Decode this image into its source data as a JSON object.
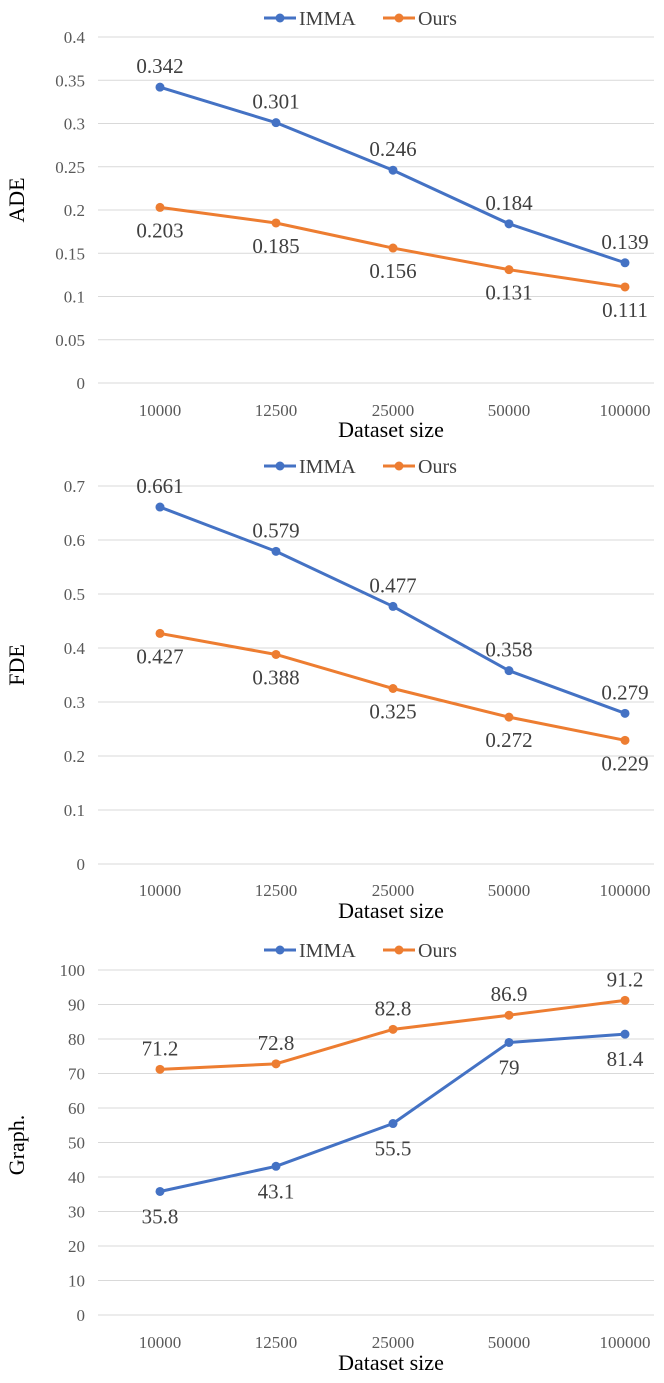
{
  "colors": {
    "imma": "#4472C4",
    "ours": "#ED7D31",
    "grid": "#D9D9D9"
  },
  "legend": {
    "imma": "IMMA",
    "ours": "Ours"
  },
  "chart_data": [
    {
      "type": "line",
      "categories": [
        "10000",
        "12500",
        "25000",
        "50000",
        "100000"
      ],
      "xlabel": "Dataset size",
      "ylabel": "ADE",
      "ylim": [
        0,
        0.4
      ],
      "yticks": [
        "0",
        "0.05",
        "0.1",
        "0.15",
        "0.2",
        "0.25",
        "0.3",
        "0.35",
        "0.4"
      ],
      "grid": true,
      "legend_position": "top",
      "series": [
        {
          "name": "IMMA",
          "values": [
            0.342,
            0.301,
            0.246,
            0.184,
            0.139
          ],
          "labels": [
            "0.342",
            "0.301",
            "0.246",
            "0.184",
            "0.139"
          ]
        },
        {
          "name": "Ours",
          "values": [
            0.203,
            0.185,
            0.156,
            0.131,
            0.111
          ],
          "labels": [
            "0.203",
            "0.185",
            "0.156",
            "0.131",
            "0.111"
          ]
        }
      ]
    },
    {
      "type": "line",
      "categories": [
        "10000",
        "12500",
        "25000",
        "50000",
        "100000"
      ],
      "xlabel": "Dataset size",
      "ylabel": "FDE",
      "ylim": [
        0,
        0.7
      ],
      "yticks": [
        "0",
        "0.1",
        "0.2",
        "0.3",
        "0.4",
        "0.5",
        "0.6",
        "0.7"
      ],
      "grid": true,
      "legend_position": "top",
      "series": [
        {
          "name": "IMMA",
          "values": [
            0.661,
            0.579,
            0.477,
            0.358,
            0.279
          ],
          "labels": [
            "0.661",
            "0.579",
            "0.477",
            "0.358",
            "0.279"
          ]
        },
        {
          "name": "Ours",
          "values": [
            0.427,
            0.388,
            0.325,
            0.272,
            0.229
          ],
          "labels": [
            "0.427",
            "0.388",
            "0.325",
            "0.272",
            "0.229"
          ]
        }
      ]
    },
    {
      "type": "line",
      "categories": [
        "10000",
        "12500",
        "25000",
        "50000",
        "100000"
      ],
      "xlabel": "Dataset size",
      "ylabel": "Graph.",
      "ylim": [
        0,
        100
      ],
      "yticks": [
        "0",
        "10",
        "20",
        "30",
        "40",
        "50",
        "60",
        "70",
        "80",
        "90",
        "100"
      ],
      "grid": true,
      "legend_position": "top",
      "series": [
        {
          "name": "IMMA",
          "values": [
            35.8,
            43.1,
            55.5,
            79,
            81.4
          ],
          "labels": [
            "35.8",
            "43.1",
            "55.5",
            "79",
            "81.4"
          ]
        },
        {
          "name": "Ours",
          "values": [
            71.2,
            72.8,
            82.8,
            86.9,
            91.2
          ],
          "labels": [
            "71.2",
            "72.8",
            "82.8",
            "86.9",
            "91.2"
          ]
        }
      ]
    }
  ]
}
